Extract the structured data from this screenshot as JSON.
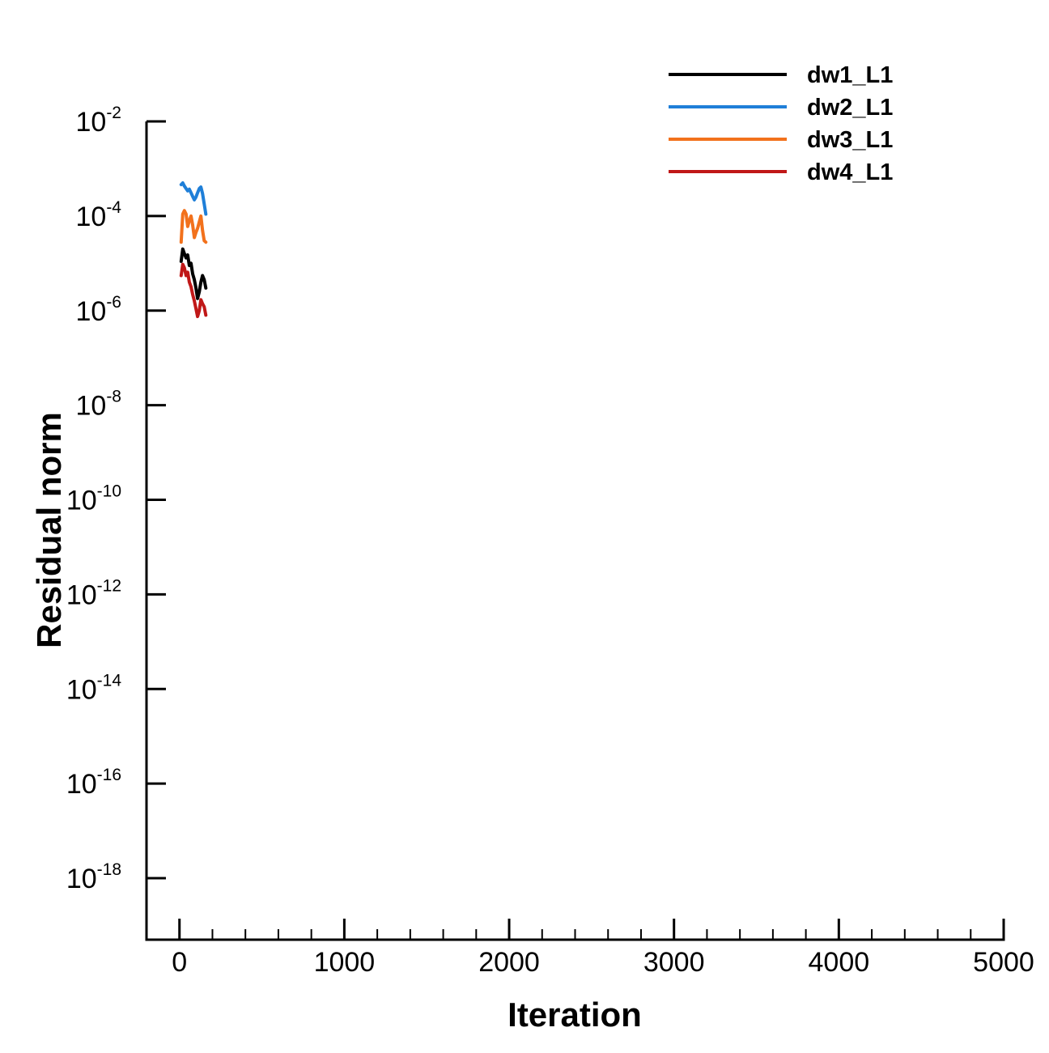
{
  "chart_data": {
    "type": "line",
    "title": "",
    "xlabel": "Iteration",
    "ylabel": "Residual norm",
    "xlim": [
      -200,
      5000
    ],
    "ylim_log10": [
      -19.3,
      -2
    ],
    "y_scale": "log",
    "x_ticks": [
      0,
      1000,
      2000,
      3000,
      4000,
      5000
    ],
    "x_tick_labels": [
      "0",
      "1000",
      "2000",
      "3000",
      "4000",
      "5000"
    ],
    "x_minor_step": 200,
    "y_ticks_log10": [
      -2,
      -4,
      -6,
      -8,
      -10,
      -12,
      -14,
      -16,
      -18
    ],
    "y_tick_labels": [
      {
        "base": "10",
        "exp": "-2"
      },
      {
        "base": "10",
        "exp": "-4"
      },
      {
        "base": "10",
        "exp": "-6"
      },
      {
        "base": "10",
        "exp": "-8"
      },
      {
        "base": "10",
        "exp": "-10"
      },
      {
        "base": "10",
        "exp": "-12"
      },
      {
        "base": "10",
        "exp": "-14"
      },
      {
        "base": "10",
        "exp": "-16"
      },
      {
        "base": "10",
        "exp": "-18"
      }
    ],
    "grid": false,
    "legend_position": "top-right",
    "series": [
      {
        "name": "dw1_L1",
        "color": "#000000",
        "x": [
          10,
          20,
          30,
          40,
          50,
          60,
          70,
          80,
          90,
          100,
          110,
          120,
          130,
          140,
          150,
          160
        ],
        "y": [
          1.1e-05,
          2e-05,
          1.6e-05,
          1.3e-05,
          1.5e-05,
          9e-06,
          1e-05,
          6e-06,
          4.5e-06,
          3e-06,
          1.8e-06,
          2.5e-06,
          4e-06,
          5.5e-06,
          4.5e-06,
          3e-06
        ]
      },
      {
        "name": "dw2_L1",
        "color": "#1f7fd8",
        "x": [
          10,
          20,
          30,
          40,
          50,
          60,
          70,
          80,
          90,
          100,
          110,
          120,
          130,
          140,
          150,
          160
        ],
        "y": [
          0.00046,
          0.0005,
          0.00043,
          0.00038,
          0.00034,
          0.00037,
          0.00031,
          0.00026,
          0.00022,
          0.00025,
          0.00031,
          0.00038,
          0.00041,
          0.0003,
          0.00018,
          0.00011
        ]
      },
      {
        "name": "dw3_L1",
        "color": "#f2711c",
        "x": [
          10,
          20,
          30,
          40,
          50,
          60,
          70,
          80,
          90,
          100,
          110,
          120,
          130,
          140,
          150,
          160
        ],
        "y": [
          2.8e-05,
          0.00011,
          0.00013,
          0.00011,
          6e-05,
          8e-05,
          0.0001,
          6.5e-05,
          3.5e-05,
          4.5e-05,
          5.5e-05,
          7.5e-05,
          0.0001,
          5e-05,
          3e-05,
          2.8e-05
        ]
      },
      {
        "name": "dw4_L1",
        "color": "#c01818",
        "x": [
          10,
          20,
          30,
          40,
          50,
          60,
          70,
          80,
          90,
          100,
          110,
          120,
          130,
          140,
          150,
          160
        ],
        "y": [
          5.5e-06,
          9.5e-06,
          8e-06,
          5.5e-06,
          6.5e-06,
          4e-06,
          3.2e-06,
          2.2e-06,
          1.6e-06,
          1.1e-06,
          7.5e-07,
          1e-06,
          1.7e-06,
          1.4e-06,
          1.2e-06,
          8e-07
        ]
      }
    ]
  }
}
